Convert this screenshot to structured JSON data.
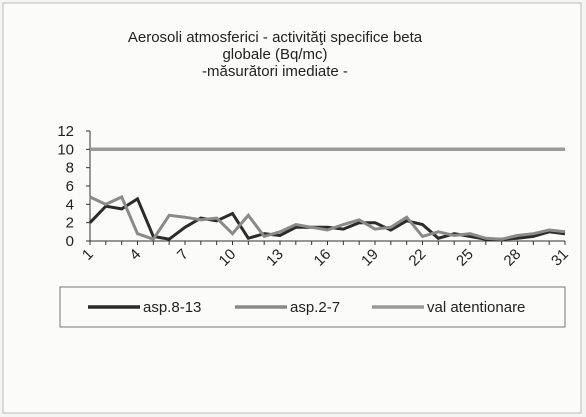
{
  "chart_data": {
    "type": "line",
    "title": [
      "Aerosoli atmosferici  - activităţi specifice beta",
      "globale (Bq/mc)",
      "-măsurători imediate -"
    ],
    "categories": [
      "1",
      null,
      null,
      "4",
      null,
      null,
      "7",
      null,
      null,
      "10",
      null,
      null,
      "13",
      null,
      null,
      "16",
      null,
      null,
      "19",
      null,
      null,
      "22",
      null,
      null,
      "25",
      null,
      null,
      "28",
      null,
      null,
      "31"
    ],
    "series": [
      {
        "name": "asp.8-13",
        "color": "#2b2b2b",
        "values": [
          2,
          3.8,
          3.5,
          4.6,
          0.5,
          0.2,
          1.5,
          2.5,
          2.2,
          3.0,
          0.3,
          0.8,
          0.6,
          1.5,
          1.5,
          1.5,
          1.3,
          2.0,
          2.0,
          1.2,
          2.2,
          1.8,
          0.3,
          0.8,
          0.5,
          0.2,
          0.2,
          0.3,
          0.5,
          1.0,
          0.8
        ]
      },
      {
        "name": "asp.2-7",
        "color": "#8a8a8a",
        "values": [
          4.8,
          4.0,
          4.8,
          0.8,
          0.2,
          2.8,
          2.6,
          2.3,
          2.5,
          0.8,
          2.8,
          0.5,
          1.0,
          1.8,
          1.5,
          1.2,
          1.8,
          2.3,
          1.3,
          1.5,
          2.6,
          0.5,
          1.0,
          0.6,
          0.8,
          0.3,
          0.2,
          0.6,
          0.8,
          1.2,
          1.0
        ]
      },
      {
        "name": "val atentionare",
        "color": "#9a9a9a",
        "values": [
          10,
          10,
          10,
          10,
          10,
          10,
          10,
          10,
          10,
          10,
          10,
          10,
          10,
          10,
          10,
          10,
          10,
          10,
          10,
          10,
          10,
          10,
          10,
          10,
          10,
          10,
          10,
          10,
          10,
          10,
          10
        ]
      }
    ],
    "ylim": [
      0,
      12
    ],
    "yticks": [
      0,
      2,
      4,
      6,
      8,
      10,
      12
    ]
  }
}
